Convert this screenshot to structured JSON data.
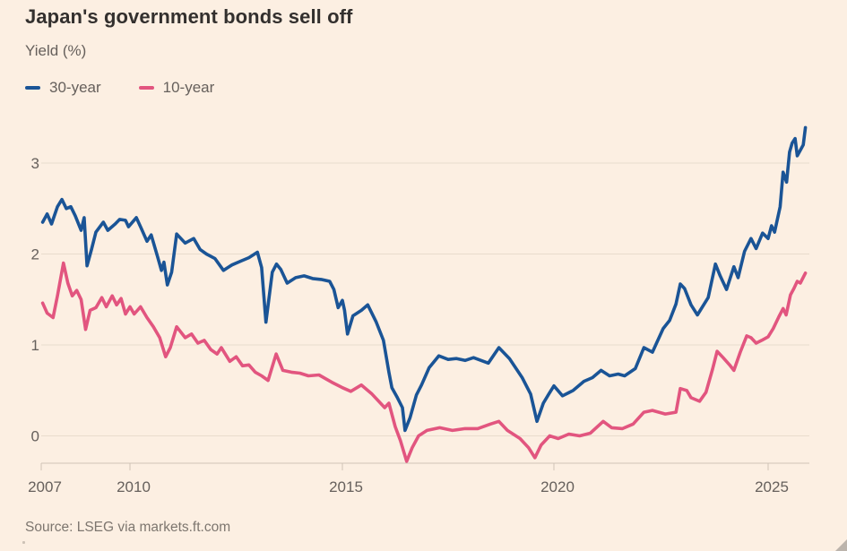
{
  "header": {
    "title": "Japan's government bonds sell off",
    "subtitle": "Yield (%)"
  },
  "legend": {
    "items": [
      {
        "label": "30-year",
        "color": "#1a5496"
      },
      {
        "label": "10-year",
        "color": "#e2557f"
      }
    ]
  },
  "footer": {
    "source": "Source: LSEG via markets.ft.com"
  },
  "theme": {
    "background": "#fcefe2",
    "title_text": "#33302e",
    "secondary_text": "#66605c",
    "grid_line": "#e9dccd",
    "axis_line": "#cfc3b6",
    "source_text": "#7d766f",
    "series_30yr": "#1a5496",
    "series_10yr": "#e2557f"
  },
  "chart_data": {
    "type": "line",
    "title": "Japan's government bonds sell off",
    "ylabel": "Yield (%)",
    "xlabel": "",
    "grid": "horizontal",
    "legend_position": "top-left",
    "x_axis": {
      "ticks": [
        2007,
        2010,
        2015,
        2020,
        2025
      ],
      "range": [
        2007,
        2026
      ]
    },
    "y_axis": {
      "ticks": [
        0,
        1,
        2,
        3
      ],
      "range": [
        -0.45,
        3.5
      ]
    },
    "series": [
      {
        "name": "30-year",
        "color": "#1a5496",
        "points": [
          [
            2007.05,
            2.35
          ],
          [
            2007.2,
            2.44
          ],
          [
            2007.35,
            2.33
          ],
          [
            2007.55,
            2.52
          ],
          [
            2007.7,
            2.6
          ],
          [
            2007.85,
            2.5
          ],
          [
            2008.0,
            2.52
          ],
          [
            2008.15,
            2.42
          ],
          [
            2008.35,
            2.26
          ],
          [
            2008.45,
            2.4
          ],
          [
            2008.55,
            1.87
          ],
          [
            2008.7,
            2.05
          ],
          [
            2008.85,
            2.24
          ],
          [
            2009.1,
            2.35
          ],
          [
            2009.25,
            2.26
          ],
          [
            2009.5,
            2.33
          ],
          [
            2009.65,
            2.38
          ],
          [
            2009.85,
            2.37
          ],
          [
            2009.95,
            2.3
          ],
          [
            2010.15,
            2.4
          ],
          [
            2010.25,
            2.3
          ],
          [
            2010.4,
            2.14
          ],
          [
            2010.5,
            2.21
          ],
          [
            2010.65,
            1.97
          ],
          [
            2010.74,
            1.82
          ],
          [
            2010.8,
            1.91
          ],
          [
            2010.88,
            1.66
          ],
          [
            2010.98,
            1.8
          ],
          [
            2011.1,
            2.22
          ],
          [
            2011.3,
            2.12
          ],
          [
            2011.5,
            2.17
          ],
          [
            2011.65,
            2.05
          ],
          [
            2011.8,
            2.0
          ],
          [
            2012.0,
            1.95
          ],
          [
            2012.2,
            1.82
          ],
          [
            2012.4,
            1.88
          ],
          [
            2012.6,
            1.92
          ],
          [
            2012.8,
            1.96
          ],
          [
            2013.0,
            2.02
          ],
          [
            2013.1,
            1.85
          ],
          [
            2013.2,
            1.25
          ],
          [
            2013.35,
            1.8
          ],
          [
            2013.45,
            1.89
          ],
          [
            2013.55,
            1.83
          ],
          [
            2013.7,
            1.68
          ],
          [
            2013.9,
            1.74
          ],
          [
            2014.1,
            1.76
          ],
          [
            2014.3,
            1.73
          ],
          [
            2014.5,
            1.72
          ],
          [
            2014.7,
            1.7
          ],
          [
            2014.8,
            1.61
          ],
          [
            2014.9,
            1.41
          ],
          [
            2015.0,
            1.49
          ],
          [
            2015.05,
            1.38
          ],
          [
            2015.12,
            1.12
          ],
          [
            2015.25,
            1.32
          ],
          [
            2015.45,
            1.38
          ],
          [
            2015.6,
            1.44
          ],
          [
            2015.8,
            1.25
          ],
          [
            2015.97,
            1.05
          ],
          [
            2016.1,
            0.7
          ],
          [
            2016.17,
            0.53
          ],
          [
            2016.3,
            0.42
          ],
          [
            2016.42,
            0.31
          ],
          [
            2016.48,
            0.06
          ],
          [
            2016.6,
            0.2
          ],
          [
            2016.75,
            0.45
          ],
          [
            2016.87,
            0.56
          ],
          [
            2017.05,
            0.75
          ],
          [
            2017.28,
            0.88
          ],
          [
            2017.5,
            0.84
          ],
          [
            2017.7,
            0.85
          ],
          [
            2017.9,
            0.83
          ],
          [
            2018.1,
            0.86
          ],
          [
            2018.45,
            0.8
          ],
          [
            2018.7,
            0.97
          ],
          [
            2018.95,
            0.85
          ],
          [
            2019.25,
            0.64
          ],
          [
            2019.45,
            0.46
          ],
          [
            2019.6,
            0.16
          ],
          [
            2019.75,
            0.36
          ],
          [
            2019.88,
            0.46
          ],
          [
            2020.0,
            0.55
          ],
          [
            2020.2,
            0.44
          ],
          [
            2020.45,
            0.5
          ],
          [
            2020.7,
            0.6
          ],
          [
            2020.9,
            0.64
          ],
          [
            2021.1,
            0.72
          ],
          [
            2021.3,
            0.66
          ],
          [
            2021.5,
            0.68
          ],
          [
            2021.65,
            0.66
          ],
          [
            2021.9,
            0.74
          ],
          [
            2022.1,
            0.97
          ],
          [
            2022.3,
            0.92
          ],
          [
            2022.55,
            1.18
          ],
          [
            2022.7,
            1.27
          ],
          [
            2022.85,
            1.45
          ],
          [
            2022.95,
            1.67
          ],
          [
            2023.05,
            1.62
          ],
          [
            2023.2,
            1.44
          ],
          [
            2023.35,
            1.33
          ],
          [
            2023.6,
            1.52
          ],
          [
            2023.77,
            1.89
          ],
          [
            2023.88,
            1.76
          ],
          [
            2024.03,
            1.61
          ],
          [
            2024.2,
            1.86
          ],
          [
            2024.3,
            1.74
          ],
          [
            2024.45,
            2.03
          ],
          [
            2024.6,
            2.17
          ],
          [
            2024.72,
            2.06
          ],
          [
            2024.87,
            2.23
          ],
          [
            2025.0,
            2.17
          ],
          [
            2025.08,
            2.31
          ],
          [
            2025.15,
            2.24
          ],
          [
            2025.28,
            2.52
          ],
          [
            2025.35,
            2.9
          ],
          [
            2025.43,
            2.79
          ],
          [
            2025.5,
            3.12
          ],
          [
            2025.56,
            3.22
          ],
          [
            2025.63,
            3.27
          ],
          [
            2025.68,
            3.08
          ],
          [
            2025.75,
            3.14
          ],
          [
            2025.82,
            3.2
          ],
          [
            2025.87,
            3.39
          ]
        ]
      },
      {
        "name": "10-year",
        "color": "#e2557f",
        "points": [
          [
            2007.05,
            1.46
          ],
          [
            2007.2,
            1.35
          ],
          [
            2007.4,
            1.3
          ],
          [
            2007.55,
            1.54
          ],
          [
            2007.75,
            1.9
          ],
          [
            2007.9,
            1.68
          ],
          [
            2008.05,
            1.54
          ],
          [
            2008.2,
            1.6
          ],
          [
            2008.35,
            1.5
          ],
          [
            2008.5,
            1.17
          ],
          [
            2008.65,
            1.38
          ],
          [
            2008.85,
            1.41
          ],
          [
            2009.05,
            1.52
          ],
          [
            2009.2,
            1.42
          ],
          [
            2009.4,
            1.54
          ],
          [
            2009.55,
            1.44
          ],
          [
            2009.7,
            1.51
          ],
          [
            2009.85,
            1.34
          ],
          [
            2010.0,
            1.42
          ],
          [
            2010.1,
            1.34
          ],
          [
            2010.25,
            1.42
          ],
          [
            2010.4,
            1.3
          ],
          [
            2010.55,
            1.2
          ],
          [
            2010.7,
            1.08
          ],
          [
            2010.84,
            0.87
          ],
          [
            2010.95,
            0.97
          ],
          [
            2011.1,
            1.2
          ],
          [
            2011.3,
            1.08
          ],
          [
            2011.45,
            1.12
          ],
          [
            2011.6,
            1.02
          ],
          [
            2011.75,
            1.05
          ],
          [
            2011.9,
            0.95
          ],
          [
            2012.05,
            0.9
          ],
          [
            2012.15,
            0.97
          ],
          [
            2012.35,
            0.82
          ],
          [
            2012.5,
            0.87
          ],
          [
            2012.65,
            0.77
          ],
          [
            2012.8,
            0.78
          ],
          [
            2012.95,
            0.7
          ],
          [
            2013.1,
            0.66
          ],
          [
            2013.25,
            0.61
          ],
          [
            2013.44,
            0.9
          ],
          [
            2013.6,
            0.72
          ],
          [
            2013.8,
            0.7
          ],
          [
            2014.0,
            0.69
          ],
          [
            2014.2,
            0.66
          ],
          [
            2014.45,
            0.67
          ],
          [
            2014.75,
            0.59
          ],
          [
            2015.0,
            0.53
          ],
          [
            2015.2,
            0.49
          ],
          [
            2015.45,
            0.56
          ],
          [
            2015.7,
            0.46
          ],
          [
            2016.0,
            0.31
          ],
          [
            2016.1,
            0.36
          ],
          [
            2016.25,
            0.1
          ],
          [
            2016.37,
            -0.05
          ],
          [
            2016.52,
            -0.28
          ],
          [
            2016.65,
            -0.13
          ],
          [
            2016.8,
            0.0
          ],
          [
            2017.0,
            0.06
          ],
          [
            2017.3,
            0.09
          ],
          [
            2017.6,
            0.06
          ],
          [
            2017.9,
            0.08
          ],
          [
            2018.2,
            0.08
          ],
          [
            2018.5,
            0.13
          ],
          [
            2018.7,
            0.16
          ],
          [
            2018.9,
            0.06
          ],
          [
            2019.2,
            -0.03
          ],
          [
            2019.4,
            -0.13
          ],
          [
            2019.55,
            -0.24
          ],
          [
            2019.7,
            -0.1
          ],
          [
            2019.9,
            0.0
          ],
          [
            2020.1,
            -0.03
          ],
          [
            2020.35,
            0.02
          ],
          [
            2020.6,
            0.0
          ],
          [
            2020.85,
            0.03
          ],
          [
            2021.15,
            0.16
          ],
          [
            2021.35,
            0.09
          ],
          [
            2021.6,
            0.08
          ],
          [
            2021.85,
            0.13
          ],
          [
            2022.1,
            0.26
          ],
          [
            2022.3,
            0.28
          ],
          [
            2022.6,
            0.24
          ],
          [
            2022.85,
            0.26
          ],
          [
            2022.95,
            0.52
          ],
          [
            2023.1,
            0.5
          ],
          [
            2023.2,
            0.42
          ],
          [
            2023.4,
            0.38
          ],
          [
            2023.55,
            0.48
          ],
          [
            2023.7,
            0.73
          ],
          [
            2023.81,
            0.93
          ],
          [
            2023.95,
            0.86
          ],
          [
            2024.1,
            0.78
          ],
          [
            2024.2,
            0.72
          ],
          [
            2024.35,
            0.92
          ],
          [
            2024.5,
            1.1
          ],
          [
            2024.6,
            1.08
          ],
          [
            2024.72,
            1.02
          ],
          [
            2024.85,
            1.05
          ],
          [
            2025.0,
            1.09
          ],
          [
            2025.12,
            1.18
          ],
          [
            2025.25,
            1.31
          ],
          [
            2025.35,
            1.4
          ],
          [
            2025.42,
            1.33
          ],
          [
            2025.52,
            1.55
          ],
          [
            2025.6,
            1.62
          ],
          [
            2025.68,
            1.7
          ],
          [
            2025.75,
            1.68
          ],
          [
            2025.87,
            1.79
          ]
        ]
      }
    ]
  }
}
